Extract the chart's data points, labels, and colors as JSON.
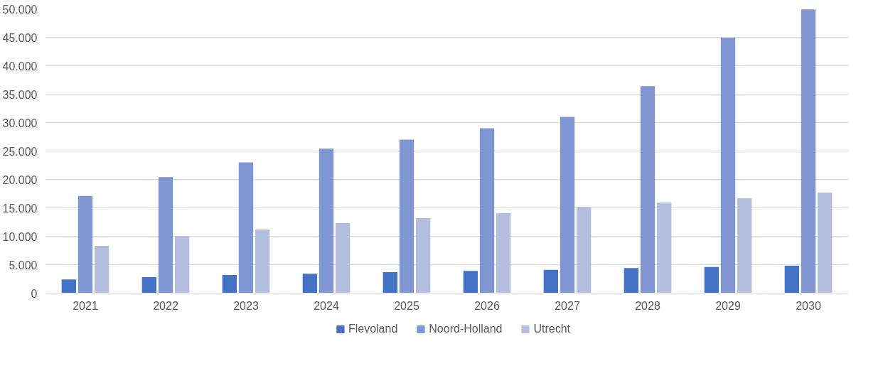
{
  "chart_data": {
    "type": "bar",
    "categories": [
      "2021",
      "2022",
      "2023",
      "2024",
      "2025",
      "2026",
      "2027",
      "2028",
      "2029",
      "2030"
    ],
    "series": [
      {
        "name": "Flevoland",
        "color": "#4472c4",
        "values": [
          2400,
          2800,
          3200,
          3400,
          3700,
          3900,
          4100,
          4400,
          4600,
          4800
        ]
      },
      {
        "name": "Noord-Holland",
        "color": "#7f96d2",
        "values": [
          17100,
          20400,
          23000,
          25400,
          27000,
          29000,
          31000,
          36400,
          44900,
          49900
        ]
      },
      {
        "name": "Utrecht",
        "color": "#b4bfe0",
        "values": [
          8300,
          10000,
          11200,
          12300,
          13200,
          14100,
          15200,
          15900,
          16700,
          17700
        ]
      }
    ],
    "ylim": [
      0,
      50000
    ],
    "yticks": [
      {
        "value": 0,
        "label": "0"
      },
      {
        "value": 5000,
        "label": "5.000"
      },
      {
        "value": 10000,
        "label": "10.000"
      },
      {
        "value": 15000,
        "label": "15.000"
      },
      {
        "value": 20000,
        "label": "20.000"
      },
      {
        "value": 25000,
        "label": "25.000"
      },
      {
        "value": 30000,
        "label": "30.000"
      },
      {
        "value": 35000,
        "label": "35.000"
      },
      {
        "value": 40000,
        "label": "40.000"
      },
      {
        "value": 45000,
        "label": "45.000"
      },
      {
        "value": 50000,
        "label": "50.000"
      }
    ],
    "grid": "y",
    "legend": "bottom"
  }
}
